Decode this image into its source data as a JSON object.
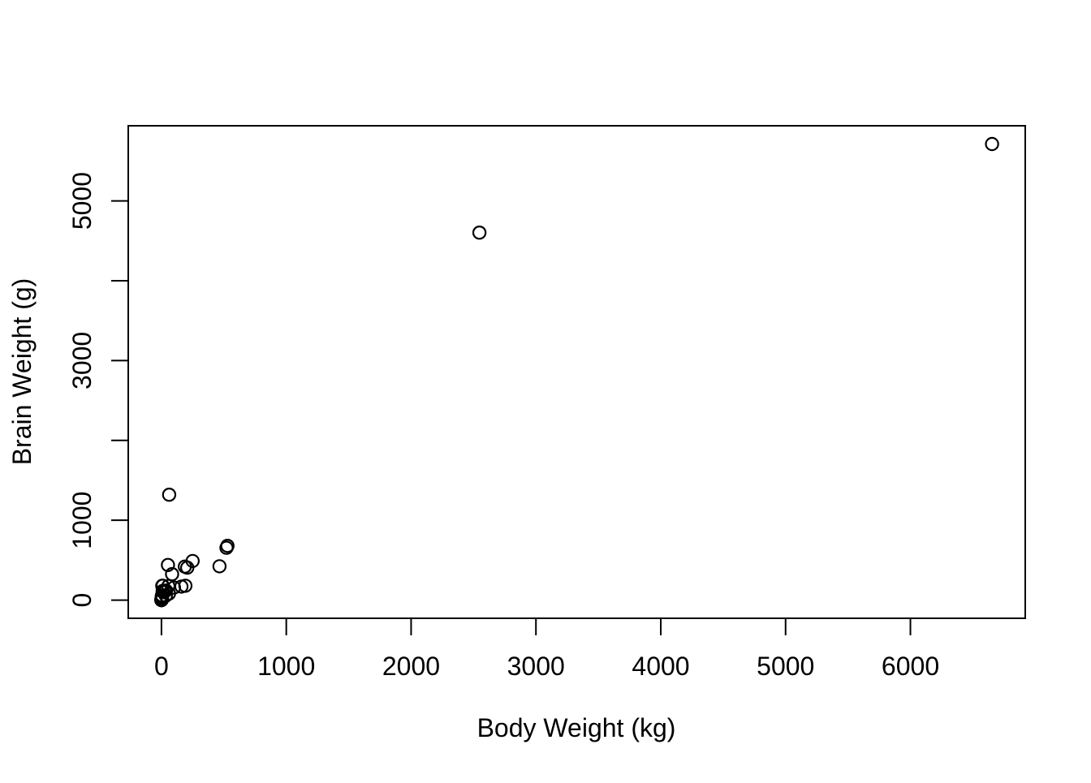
{
  "chart_data": {
    "type": "scatter",
    "title": "",
    "xlabel": "Body Weight (kg)",
    "ylabel": "Brain Weight (g)",
    "xlim": [
      -266,
      6920
    ],
    "ylim": [
      -228,
      5941
    ],
    "grid": false,
    "legend": "none",
    "marker": "open-circle",
    "marker_color": "#000000",
    "background_color": "#ffffff",
    "x_ticks": [
      {
        "value": 0,
        "label": "0"
      },
      {
        "value": 1000,
        "label": "1000"
      },
      {
        "value": 2000,
        "label": "2000"
      },
      {
        "value": 3000,
        "label": "3000"
      },
      {
        "value": 4000,
        "label": "4000"
      },
      {
        "value": 5000,
        "label": "5000"
      },
      {
        "value": 6000,
        "label": "6000"
      }
    ],
    "y_ticks": [
      {
        "value": 0,
        "label": "0"
      },
      {
        "value": 1000,
        "label": "1000"
      },
      {
        "value": 2000,
        "label": ""
      },
      {
        "value": 3000,
        "label": "3000"
      },
      {
        "value": 4000,
        "label": ""
      },
      {
        "value": 5000,
        "label": "5000"
      }
    ],
    "points": [
      [
        3.385,
        44.5
      ],
      [
        0.48,
        15.5
      ],
      [
        1.35,
        8.1
      ],
      [
        465,
        423
      ],
      [
        36.33,
        119.5
      ],
      [
        27.66,
        115
      ],
      [
        14.83,
        98.2
      ],
      [
        1.04,
        5.5
      ],
      [
        4.19,
        58
      ],
      [
        0.425,
        6.4
      ],
      [
        0.101,
        4
      ],
      [
        0.92,
        5.7
      ],
      [
        1,
        6.6
      ],
      [
        0.005,
        0.14
      ],
      [
        0.06,
        1
      ],
      [
        3.5,
        10.8
      ],
      [
        2,
        12.3
      ],
      [
        1.7,
        6.3
      ],
      [
        2547,
        4603
      ],
      [
        0.023,
        0.3
      ],
      [
        187.1,
        419
      ],
      [
        521,
        655
      ],
      [
        0.785,
        3.5
      ],
      [
        10,
        115
      ],
      [
        3.3,
        25.6
      ],
      [
        0.2,
        5
      ],
      [
        1.41,
        17.5
      ],
      [
        529,
        680
      ],
      [
        207,
        406
      ],
      [
        85,
        325
      ],
      [
        0.75,
        12.3
      ],
      [
        62,
        1320
      ],
      [
        6654,
        5712
      ],
      [
        3.5,
        3.9
      ],
      [
        6.8,
        179
      ],
      [
        35,
        56
      ],
      [
        4.05,
        17
      ],
      [
        0.12,
        1
      ],
      [
        0.023,
        0.4
      ],
      [
        0.01,
        0.25
      ],
      [
        1.4,
        12.5
      ],
      [
        250,
        490
      ],
      [
        2.5,
        12.1
      ],
      [
        55.5,
        175
      ],
      [
        100,
        157
      ],
      [
        52.16,
        440
      ],
      [
        10.55,
        179.5
      ],
      [
        0.55,
        2.4
      ],
      [
        60,
        81
      ],
      [
        3.6,
        21
      ],
      [
        4.288,
        39.2
      ],
      [
        0.28,
        1.9
      ],
      [
        0.075,
        1.2
      ],
      [
        0.122,
        3
      ],
      [
        0.048,
        0.33
      ],
      [
        192,
        180
      ],
      [
        3,
        25
      ],
      [
        160,
        169
      ],
      [
        0.9,
        2.6
      ],
      [
        1.62,
        11.4
      ],
      [
        0.104,
        2.5
      ],
      [
        4.235,
        50.4
      ]
    ]
  }
}
